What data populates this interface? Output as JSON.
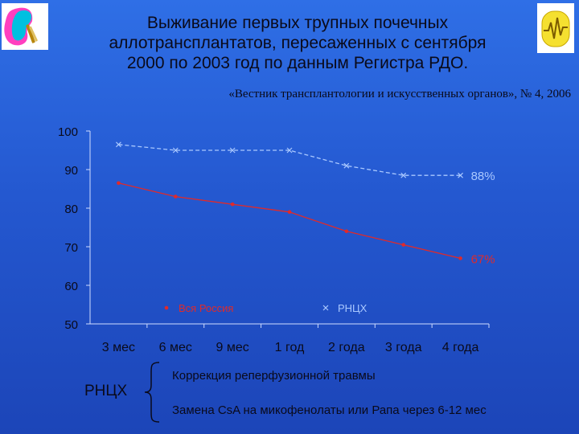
{
  "logos": {
    "left": {
      "icon": "kidney-logo-icon"
    },
    "right": {
      "icon": "society-logo-icon"
    }
  },
  "title_lines": [
    "Выживание первых трупных почечных",
    "аллотрансплантатов, пересаженных с сентября",
    "2000 по 2003 год по данным Регистра РДО."
  ],
  "source": "«Вестник трансплантологии и искусственных органов», № 4, 2006",
  "chart_data": {
    "type": "line",
    "categories": [
      "3 мес",
      "6 мес",
      "9 мес",
      "1 год",
      "2 года",
      "3 года",
      "4 года"
    ],
    "ylim": [
      50,
      100
    ],
    "yticks": [
      "100",
      "90",
      "80",
      "70",
      "60",
      "50"
    ],
    "series": [
      {
        "name": "Вся Россия",
        "color": "#e02a2a",
        "marker": "circle",
        "dashed": false,
        "values": [
          86.5,
          83,
          81,
          79,
          74,
          70.5,
          67
        ],
        "end_label": "67%"
      },
      {
        "name": "РНЦХ",
        "color": "#a9c8ff",
        "marker": "x",
        "dashed": true,
        "values": [
          96.5,
          95,
          95,
          95,
          91,
          88.5,
          88.5
        ],
        "end_label": "88%"
      }
    ],
    "grid": false,
    "legend": "bottom"
  },
  "footer": {
    "label": "РНЦХ",
    "notes": [
      "Коррекция реперфузионной травмы",
      "Замена CsA на микофенолаты или Рапа через 6-12 мес"
    ]
  }
}
